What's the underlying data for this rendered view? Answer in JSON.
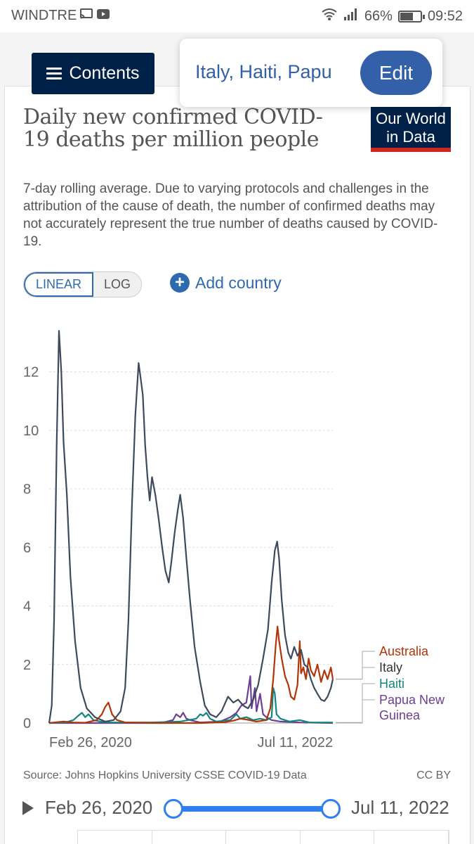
{
  "status": {
    "carrier": "WINDTRE",
    "battery": "66%",
    "time": "09:52"
  },
  "nav": {
    "contents_label": "Contents",
    "selected_entities": "Italy, Haiti, Papu",
    "edit_label": "Edit"
  },
  "header": {
    "title": "Daily new confirmed COVID-19 deaths per million people",
    "subtitle": "7-day rolling average. Due to varying protocols and challenges in the attribution of the cause of death, the number of confirmed deaths may not accurately represent the true number of deaths caused by COVID-19.",
    "logo_line1": "Our World",
    "logo_line2": "in Data"
  },
  "controls": {
    "linear_label": "LINEAR",
    "log_label": "LOG",
    "add_country_label": "Add country"
  },
  "footer": {
    "source": "Source: Johns Hopkins University CSSE COVID-19 Data",
    "license": "CC BY"
  },
  "timeline": {
    "start_label": "Feb 26, 2020",
    "end_label": "Jul 11, 2022",
    "selected_fraction": 1.0
  },
  "colors": {
    "accent": "#2f6ab0",
    "brand": "#002147",
    "logo_underline": "#ce261e"
  },
  "chart_data": {
    "type": "line",
    "title": "Daily new confirmed COVID-19 deaths per million people",
    "ylim": [
      0,
      13.6
    ],
    "yticks": [
      0,
      2,
      4,
      6,
      8,
      10,
      12
    ],
    "x_range": [
      "2020-02-26",
      "2022-07-11"
    ],
    "xtick_labels": [
      "Feb 26, 2020",
      "Jul 11, 2022"
    ],
    "grid": true,
    "legend": "right-end labels",
    "series": [
      {
        "name": "Australia",
        "color": "#b13507",
        "points": [
          [
            "2020-02-26",
            0
          ],
          [
            "2020-03-20",
            0.03
          ],
          [
            "2020-04-10",
            0.05
          ],
          [
            "2020-05-10",
            0.02
          ],
          [
            "2020-06-15",
            0.01
          ],
          [
            "2020-07-20",
            0.1
          ],
          [
            "2020-08-05",
            0.3
          ],
          [
            "2020-08-15",
            0.55
          ],
          [
            "2020-08-25",
            0.7
          ],
          [
            "2020-09-05",
            0.3
          ],
          [
            "2020-09-20",
            0.1
          ],
          [
            "2020-10-15",
            0.02
          ],
          [
            "2021-02-01",
            0
          ],
          [
            "2021-06-01",
            0
          ],
          [
            "2021-08-15",
            0.03
          ],
          [
            "2021-09-10",
            0.08
          ],
          [
            "2021-10-01",
            0.15
          ],
          [
            "2021-10-20",
            0.12
          ],
          [
            "2021-11-20",
            0.05
          ],
          [
            "2021-12-20",
            0.1
          ],
          [
            "2022-01-01",
            0.5
          ],
          [
            "2022-01-10",
            1.5
          ],
          [
            "2022-01-18",
            2.7
          ],
          [
            "2022-01-23",
            3.3
          ],
          [
            "2022-01-28",
            2.8
          ],
          [
            "2022-02-05",
            2.2
          ],
          [
            "2022-02-15",
            1.6
          ],
          [
            "2022-02-25",
            1.3
          ],
          [
            "2022-03-05",
            0.9
          ],
          [
            "2022-03-15",
            0.8
          ],
          [
            "2022-03-25",
            1.3
          ],
          [
            "2022-04-01",
            2.8
          ],
          [
            "2022-04-05",
            1.7
          ],
          [
            "2022-04-12",
            1.9
          ],
          [
            "2022-04-20",
            1.5
          ],
          [
            "2022-04-28",
            2.2
          ],
          [
            "2022-05-05",
            1.8
          ],
          [
            "2022-05-15",
            1.6
          ],
          [
            "2022-05-25",
            2.0
          ],
          [
            "2022-06-05",
            1.4
          ],
          [
            "2022-06-15",
            1.8
          ],
          [
            "2022-06-25",
            1.5
          ],
          [
            "2022-07-05",
            1.9
          ],
          [
            "2022-07-11",
            1.5
          ]
        ]
      },
      {
        "name": "Italy",
        "color": "#3d4a5c",
        "points": [
          [
            "2020-02-26",
            0
          ],
          [
            "2020-03-05",
            0.6
          ],
          [
            "2020-03-12",
            3.5
          ],
          [
            "2020-03-20",
            9.5
          ],
          [
            "2020-03-27",
            13.4
          ],
          [
            "2020-04-03",
            12.0
          ],
          [
            "2020-04-10",
            9.6
          ],
          [
            "2020-04-20",
            7.8
          ],
          [
            "2020-05-01",
            5.0
          ],
          [
            "2020-05-15",
            2.8
          ],
          [
            "2020-06-01",
            1.2
          ],
          [
            "2020-06-20",
            0.5
          ],
          [
            "2020-07-15",
            0.2
          ],
          [
            "2020-08-15",
            0.05
          ],
          [
            "2020-09-10",
            0.1
          ],
          [
            "2020-10-01",
            0.4
          ],
          [
            "2020-10-15",
            1.2
          ],
          [
            "2020-10-25",
            3.5
          ],
          [
            "2020-11-05",
            7.5
          ],
          [
            "2020-11-15",
            10.5
          ],
          [
            "2020-11-25",
            12.3
          ],
          [
            "2020-12-01",
            11.8
          ],
          [
            "2020-12-08",
            11.2
          ],
          [
            "2020-12-15",
            9.5
          ],
          [
            "2020-12-22",
            8.4
          ],
          [
            "2020-12-29",
            7.6
          ],
          [
            "2021-01-05",
            8.4
          ],
          [
            "2021-01-15",
            7.8
          ],
          [
            "2021-01-25",
            7.0
          ],
          [
            "2021-02-05",
            6.0
          ],
          [
            "2021-02-15",
            5.2
          ],
          [
            "2021-02-25",
            4.8
          ],
          [
            "2021-03-05",
            5.5
          ],
          [
            "2021-03-15",
            6.5
          ],
          [
            "2021-03-25",
            7.3
          ],
          [
            "2021-04-01",
            7.8
          ],
          [
            "2021-04-10",
            7.0
          ],
          [
            "2021-04-20",
            5.6
          ],
          [
            "2021-05-01",
            4.2
          ],
          [
            "2021-05-15",
            2.6
          ],
          [
            "2021-06-01",
            1.4
          ],
          [
            "2021-06-15",
            0.6
          ],
          [
            "2021-07-01",
            0.3
          ],
          [
            "2021-07-20",
            0.2
          ],
          [
            "2021-08-05",
            0.4
          ],
          [
            "2021-08-25",
            0.9
          ],
          [
            "2021-09-10",
            0.7
          ],
          [
            "2021-09-25",
            0.8
          ],
          [
            "2021-10-10",
            0.6
          ],
          [
            "2021-10-25",
            0.5
          ],
          [
            "2021-11-10",
            0.8
          ],
          [
            "2021-11-25",
            1.3
          ],
          [
            "2021-12-10",
            2.2
          ],
          [
            "2021-12-25",
            3.2
          ],
          [
            "2022-01-05",
            4.8
          ],
          [
            "2022-01-15",
            5.9
          ],
          [
            "2022-01-22",
            6.2
          ],
          [
            "2022-01-28",
            5.6
          ],
          [
            "2022-02-05",
            4.2
          ],
          [
            "2022-02-15",
            3.0
          ],
          [
            "2022-02-25",
            2.4
          ],
          [
            "2022-03-05",
            2.2
          ],
          [
            "2022-03-15",
            2.6
          ],
          [
            "2022-03-25",
            2.3
          ],
          [
            "2022-04-05",
            2.5
          ],
          [
            "2022-04-15",
            2.0
          ],
          [
            "2022-04-25",
            1.9
          ],
          [
            "2022-05-05",
            1.5
          ],
          [
            "2022-05-15",
            1.2
          ],
          [
            "2022-05-25",
            1.0
          ],
          [
            "2022-06-05",
            0.8
          ],
          [
            "2022-06-15",
            0.75
          ],
          [
            "2022-06-25",
            0.9
          ],
          [
            "2022-07-05",
            1.2
          ],
          [
            "2022-07-11",
            1.5
          ]
        ]
      },
      {
        "name": "Haiti",
        "color": "#13857d",
        "points": [
          [
            "2020-02-26",
            0
          ],
          [
            "2020-04-15",
            0.02
          ],
          [
            "2020-05-10",
            0.1
          ],
          [
            "2020-05-25",
            0.25
          ],
          [
            "2020-06-05",
            0.35
          ],
          [
            "2020-06-15",
            0.2
          ],
          [
            "2020-06-25",
            0.3
          ],
          [
            "2020-07-10",
            0.1
          ],
          [
            "2020-08-01",
            0.05
          ],
          [
            "2020-09-01",
            0.02
          ],
          [
            "2021-01-01",
            0.02
          ],
          [
            "2021-04-01",
            0.05
          ],
          [
            "2021-05-20",
            0.15
          ],
          [
            "2021-06-01",
            0.3
          ],
          [
            "2021-06-10",
            0.25
          ],
          [
            "2021-06-20",
            0.35
          ],
          [
            "2021-07-01",
            0.15
          ],
          [
            "2021-07-20",
            0.05
          ],
          [
            "2021-09-01",
            0.1
          ],
          [
            "2021-09-20",
            0.3
          ],
          [
            "2021-10-01",
            0.15
          ],
          [
            "2021-10-20",
            0.2
          ],
          [
            "2021-11-10",
            0.1
          ],
          [
            "2021-12-01",
            0.15
          ],
          [
            "2021-12-20",
            0.1
          ],
          [
            "2022-01-05",
            0.2
          ],
          [
            "2022-01-10",
            1.2
          ],
          [
            "2022-01-15",
            1.0
          ],
          [
            "2022-01-20",
            0.3
          ],
          [
            "2022-02-01",
            0.15
          ],
          [
            "2022-03-01",
            0.05
          ],
          [
            "2022-04-01",
            0.1
          ],
          [
            "2022-05-01",
            0.02
          ],
          [
            "2022-07-11",
            0.02
          ]
        ]
      },
      {
        "name": "Papua New Guinea",
        "color": "#6d3e91",
        "points": [
          [
            "2020-02-26",
            0
          ],
          [
            "2021-02-01",
            0
          ],
          [
            "2021-03-10",
            0.1
          ],
          [
            "2021-03-20",
            0.3
          ],
          [
            "2021-04-01",
            0.2
          ],
          [
            "2021-04-10",
            0.35
          ],
          [
            "2021-04-20",
            0.15
          ],
          [
            "2021-05-01",
            0.1
          ],
          [
            "2021-06-01",
            0.02
          ],
          [
            "2021-08-01",
            0.05
          ],
          [
            "2021-09-01",
            0.2
          ],
          [
            "2021-09-20",
            0.35
          ],
          [
            "2021-10-05",
            0.6
          ],
          [
            "2021-10-20",
            0.7
          ],
          [
            "2021-11-01",
            1.6
          ],
          [
            "2021-11-05",
            0.5
          ],
          [
            "2021-11-15",
            1.2
          ],
          [
            "2021-11-20",
            0.4
          ],
          [
            "2021-12-01",
            1.0
          ],
          [
            "2021-12-10",
            0.3
          ],
          [
            "2021-12-20",
            0.2
          ],
          [
            "2022-01-05",
            0.1
          ],
          [
            "2022-02-01",
            0.05
          ],
          [
            "2022-04-01",
            0.02
          ],
          [
            "2022-07-11",
            0.0
          ]
        ]
      }
    ]
  }
}
